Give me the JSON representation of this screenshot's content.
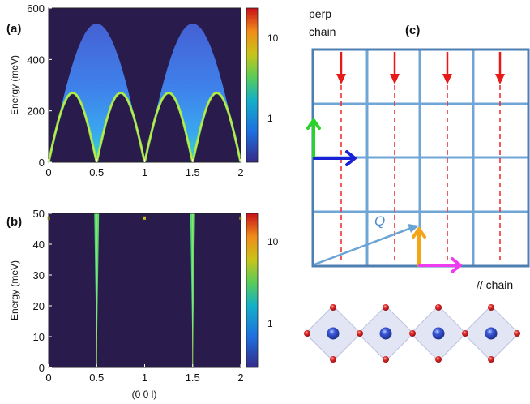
{
  "panels": {
    "a": {
      "label": "(a)",
      "ylabel": "Energy (meV)",
      "x_ticks": [
        "0",
        "0.5",
        "1",
        "1.5",
        "2"
      ],
      "y_ticks": [
        "0",
        "200",
        "400",
        "600"
      ],
      "colorbar_ticks": [
        "1",
        "10"
      ]
    },
    "b": {
      "label": "(b)",
      "ylabel": "Energy (meV)",
      "xlabel": "(0 0 l)",
      "x_ticks": [
        "0",
        "0.5",
        "1",
        "1.5",
        "2"
      ],
      "y_ticks": [
        "0",
        "10",
        "20",
        "30",
        "40",
        "50"
      ],
      "colorbar_ticks": [
        "1",
        "10"
      ]
    },
    "c": {
      "label": "(c)",
      "perp_label_line1": "perp",
      "perp_label_line2": "chain",
      "par_label": "// chain",
      "q_label": "Q"
    }
  },
  "chart_data": [
    {
      "type": "heatmap",
      "panel": "a",
      "xlabel": "",
      "ylabel": "Energy (meV)",
      "xlim": [
        0,
        2
      ],
      "ylim": [
        0,
        600
      ],
      "x_ticks": [
        0,
        0.5,
        1,
        1.5,
        2
      ],
      "y_ticks": [
        0,
        200,
        400,
        600
      ],
      "colorbar_ticks": [
        1,
        10
      ],
      "colormap": "parula",
      "background_color": "#2a1b4d",
      "continuum": {
        "lower_boundary_max_meV": 270,
        "upper_boundary_max_meV": 540,
        "lower_boundary_max_at_l": [
          0.25,
          0.75,
          1.25,
          1.75
        ],
        "upper_boundary_max_at_l": [
          0.5,
          1.5
        ],
        "zero_energy_at_l": [
          0.5,
          1.5
        ]
      }
    },
    {
      "type": "heatmap",
      "panel": "b",
      "xlabel": "(0 0 l)",
      "ylabel": "Energy (meV)",
      "xlim": [
        0,
        2
      ],
      "ylim": [
        0,
        50
      ],
      "x_ticks": [
        0,
        0.5,
        1,
        1.5,
        2
      ],
      "y_ticks": [
        0,
        10,
        20,
        30,
        40,
        50
      ],
      "colorbar_ticks": [
        1,
        10
      ],
      "colormap": "parula",
      "background_color": "#2a1b4d",
      "cones": [
        {
          "center_l": 0.5,
          "half_width_at_50meV": 0.025
        },
        {
          "center_l": 1.5,
          "half_width_at_50meV": 0.025
        }
      ]
    }
  ],
  "colors": {
    "grid": "#6fa6d6",
    "grid_border": "#4f7fb0",
    "dashed": "#ee3333",
    "arrow_down": "#e81919",
    "arrow_green": "#2cd12c",
    "arrow_blue": "#1a20d6",
    "arrow_orange": "#f4a51a",
    "arrow_magenta": "#f03cf0",
    "q_arrow": "#6aa3d6",
    "cu_atom": "#2a48c8",
    "o_atom": "#d42020",
    "plaquette": "#dfe2f2"
  }
}
